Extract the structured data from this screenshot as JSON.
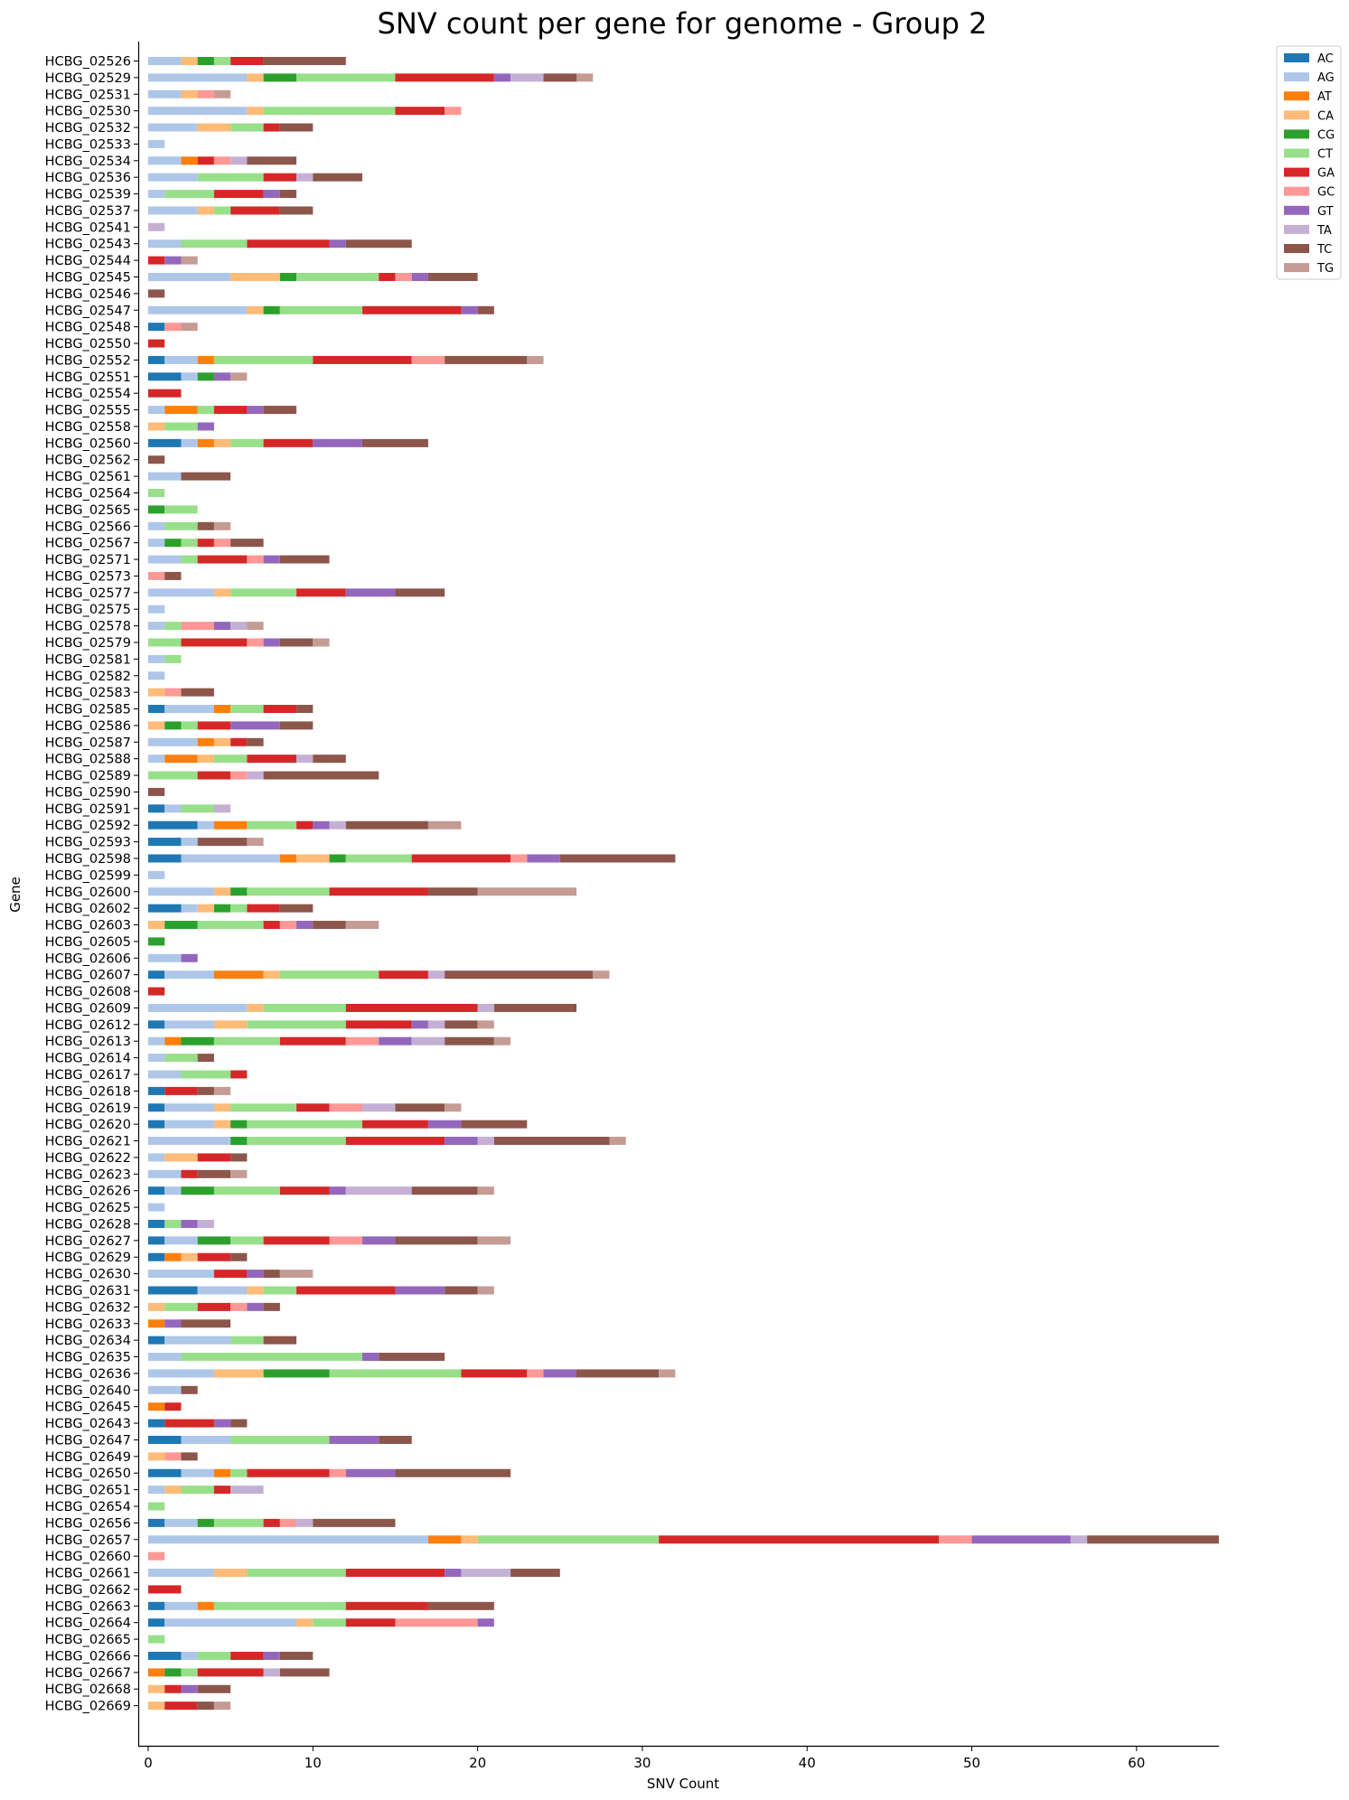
{
  "chart_data": {
    "type": "bar",
    "orientation": "horizontal",
    "stacked": true,
    "title": "SNV count per gene for genome - Group 2",
    "xlabel": "SNV Count",
    "ylabel": "Gene",
    "xlim": [
      0,
      65
    ],
    "xticks": [
      0,
      10,
      20,
      30,
      40,
      50,
      60
    ],
    "grid": false,
    "legend_position": "top-right",
    "series_names": [
      "AC",
      "AG",
      "AT",
      "CA",
      "CG",
      "CT",
      "GA",
      "GC",
      "GT",
      "TA",
      "TC",
      "TG"
    ],
    "colors": {
      "AC": "#1f77b4",
      "AG": "#aec7e8",
      "AT": "#ff7f0e",
      "CA": "#ffbb78",
      "CG": "#2ca02c",
      "CT": "#98df8a",
      "GA": "#d62728",
      "GC": "#ff9896",
      "GT": "#9467bd",
      "TA": "#c5b0d5",
      "TC": "#8c564b",
      "TG": "#c49c94"
    },
    "genes": [
      {
        "name": "HCBG_02526",
        "counts": {
          "AG": 2,
          "CA": 1,
          "CG": 1,
          "CT": 1,
          "GA": 2,
          "TC": 5
        }
      },
      {
        "name": "HCBG_02529",
        "counts": {
          "AG": 6,
          "CA": 1,
          "CG": 2,
          "CT": 6,
          "GA": 6,
          "GT": 1,
          "TA": 2,
          "TC": 2,
          "TG": 1
        }
      },
      {
        "name": "HCBG_02531",
        "counts": {
          "AG": 2,
          "CA": 1,
          "GC": 1,
          "TG": 1
        }
      },
      {
        "name": "HCBG_02530",
        "counts": {
          "AG": 6,
          "CA": 1,
          "CT": 8,
          "GA": 3,
          "GC": 1
        }
      },
      {
        "name": "HCBG_02532",
        "counts": {
          "AG": 3,
          "CA": 2,
          "CT": 2,
          "GA": 1,
          "TC": 2
        }
      },
      {
        "name": "HCBG_02533",
        "counts": {
          "AG": 1
        }
      },
      {
        "name": "HCBG_02534",
        "counts": {
          "AG": 2,
          "AT": 1,
          "GA": 1,
          "GC": 1,
          "TA": 1,
          "TC": 3
        }
      },
      {
        "name": "HCBG_02536",
        "counts": {
          "AG": 3,
          "CT": 4,
          "GA": 2,
          "TA": 1,
          "TC": 3
        }
      },
      {
        "name": "HCBG_02539",
        "counts": {
          "AG": 1,
          "CT": 3,
          "GA": 3,
          "GT": 1,
          "TC": 1
        }
      },
      {
        "name": "HCBG_02537",
        "counts": {
          "AG": 3,
          "CA": 1,
          "CT": 1,
          "GA": 3,
          "TC": 2
        }
      },
      {
        "name": "HCBG_02541",
        "counts": {
          "TA": 1
        }
      },
      {
        "name": "HCBG_02543",
        "counts": {
          "AG": 2,
          "CT": 4,
          "GA": 5,
          "GT": 1,
          "TC": 4
        }
      },
      {
        "name": "HCBG_02544",
        "counts": {
          "GA": 1,
          "GT": 1,
          "TG": 1
        }
      },
      {
        "name": "HCBG_02545",
        "counts": {
          "AG": 5,
          "CA": 3,
          "CG": 1,
          "CT": 5,
          "GA": 1,
          "GC": 1,
          "GT": 1,
          "TC": 3
        }
      },
      {
        "name": "HCBG_02546",
        "counts": {
          "TC": 1
        }
      },
      {
        "name": "HCBG_02547",
        "counts": {
          "AG": 6,
          "CA": 1,
          "CG": 1,
          "CT": 5,
          "GA": 6,
          "GT": 1,
          "TC": 1
        }
      },
      {
        "name": "HCBG_02548",
        "counts": {
          "AC": 1,
          "GC": 1,
          "TG": 1
        }
      },
      {
        "name": "HCBG_02550",
        "counts": {
          "GA": 1
        }
      },
      {
        "name": "HCBG_02552",
        "counts": {
          "AC": 1,
          "AG": 2,
          "AT": 1,
          "CT": 6,
          "GA": 6,
          "GC": 2,
          "TC": 5,
          "TG": 1
        }
      },
      {
        "name": "HCBG_02551",
        "counts": {
          "AC": 2,
          "AG": 1,
          "CG": 1,
          "GT": 1,
          "TG": 1
        }
      },
      {
        "name": "HCBG_02554",
        "counts": {
          "GA": 2
        }
      },
      {
        "name": "HCBG_02555",
        "counts": {
          "AG": 1,
          "AT": 2,
          "CT": 1,
          "GA": 2,
          "GT": 1,
          "TC": 2
        }
      },
      {
        "name": "HCBG_02558",
        "counts": {
          "CA": 1,
          "CT": 2,
          "GT": 1
        }
      },
      {
        "name": "HCBG_02560",
        "counts": {
          "AC": 2,
          "AG": 1,
          "AT": 1,
          "CA": 1,
          "CT": 2,
          "GA": 3,
          "GT": 3,
          "TC": 4
        }
      },
      {
        "name": "HCBG_02562",
        "counts": {
          "TC": 1
        }
      },
      {
        "name": "HCBG_02561",
        "counts": {
          "AG": 2,
          "TC": 3
        }
      },
      {
        "name": "HCBG_02564",
        "counts": {
          "CT": 1
        }
      },
      {
        "name": "HCBG_02565",
        "counts": {
          "CG": 1,
          "CT": 2
        }
      },
      {
        "name": "HCBG_02566",
        "counts": {
          "AG": 1,
          "CT": 2,
          "TC": 1,
          "TG": 1
        }
      },
      {
        "name": "HCBG_02567",
        "counts": {
          "AG": 1,
          "CG": 1,
          "CT": 1,
          "GA": 1,
          "GC": 1,
          "TC": 2
        }
      },
      {
        "name": "HCBG_02571",
        "counts": {
          "AG": 2,
          "CT": 1,
          "GA": 3,
          "GC": 1,
          "GT": 1,
          "TC": 3
        }
      },
      {
        "name": "HCBG_02573",
        "counts": {
          "GC": 1,
          "TC": 1
        }
      },
      {
        "name": "HCBG_02577",
        "counts": {
          "AG": 4,
          "CA": 1,
          "CT": 4,
          "GA": 3,
          "GT": 3,
          "TC": 3
        }
      },
      {
        "name": "HCBG_02575",
        "counts": {
          "AG": 1
        }
      },
      {
        "name": "HCBG_02578",
        "counts": {
          "AG": 1,
          "CT": 1,
          "GC": 2,
          "GT": 1,
          "TA": 1,
          "TG": 1
        }
      },
      {
        "name": "HCBG_02579",
        "counts": {
          "CT": 2,
          "GA": 4,
          "GC": 1,
          "GT": 1,
          "TC": 2,
          "TG": 1
        }
      },
      {
        "name": "HCBG_02581",
        "counts": {
          "AG": 1,
          "CT": 1
        }
      },
      {
        "name": "HCBG_02582",
        "counts": {
          "AG": 1
        }
      },
      {
        "name": "HCBG_02583",
        "counts": {
          "CA": 1,
          "GC": 1,
          "TC": 2
        }
      },
      {
        "name": "HCBG_02585",
        "counts": {
          "AC": 1,
          "AG": 3,
          "AT": 1,
          "CT": 2,
          "GA": 2,
          "TC": 1
        }
      },
      {
        "name": "HCBG_02586",
        "counts": {
          "CA": 1,
          "CG": 1,
          "CT": 1,
          "GA": 2,
          "GT": 3,
          "TC": 2
        }
      },
      {
        "name": "HCBG_02587",
        "counts": {
          "AG": 3,
          "AT": 1,
          "CA": 1,
          "GA": 1,
          "TC": 1
        }
      },
      {
        "name": "HCBG_02588",
        "counts": {
          "AG": 1,
          "AT": 2,
          "CA": 1,
          "CT": 2,
          "GA": 3,
          "TA": 1,
          "TC": 2
        }
      },
      {
        "name": "HCBG_02589",
        "counts": {
          "CT": 3,
          "GA": 2,
          "GC": 1,
          "TA": 1,
          "TC": 7
        }
      },
      {
        "name": "HCBG_02590",
        "counts": {
          "TC": 1
        }
      },
      {
        "name": "HCBG_02591",
        "counts": {
          "AC": 1,
          "AG": 1,
          "CT": 2,
          "TA": 1
        }
      },
      {
        "name": "HCBG_02592",
        "counts": {
          "AC": 3,
          "AG": 1,
          "AT": 2,
          "CT": 3,
          "GA": 1,
          "GT": 1,
          "TA": 1,
          "TC": 5,
          "TG": 2
        }
      },
      {
        "name": "HCBG_02593",
        "counts": {
          "AC": 2,
          "AG": 1,
          "TC": 3,
          "TG": 1
        }
      },
      {
        "name": "HCBG_02598",
        "counts": {
          "AC": 2,
          "AG": 6,
          "AT": 1,
          "CA": 2,
          "CG": 1,
          "CT": 4,
          "GA": 6,
          "GC": 1,
          "GT": 2,
          "TC": 7
        }
      },
      {
        "name": "HCBG_02599",
        "counts": {
          "AG": 1
        }
      },
      {
        "name": "HCBG_02600",
        "counts": {
          "AG": 4,
          "CA": 1,
          "CG": 1,
          "CT": 5,
          "GA": 6,
          "TC": 3,
          "TG": 6
        }
      },
      {
        "name": "HCBG_02602",
        "counts": {
          "AC": 2,
          "AG": 1,
          "CA": 1,
          "CG": 1,
          "CT": 1,
          "GA": 2,
          "TC": 2
        }
      },
      {
        "name": "HCBG_02603",
        "counts": {
          "CA": 1,
          "CG": 2,
          "CT": 4,
          "GA": 1,
          "GC": 1,
          "GT": 1,
          "TC": 2,
          "TG": 2
        }
      },
      {
        "name": "HCBG_02605",
        "counts": {
          "CG": 1
        }
      },
      {
        "name": "HCBG_02606",
        "counts": {
          "AG": 2,
          "GT": 1
        }
      },
      {
        "name": "HCBG_02607",
        "counts": {
          "AC": 1,
          "AG": 3,
          "AT": 3,
          "CA": 1,
          "CT": 6,
          "GA": 3,
          "TA": 1,
          "TC": 9,
          "TG": 1
        }
      },
      {
        "name": "HCBG_02608",
        "counts": {
          "GA": 1
        }
      },
      {
        "name": "HCBG_02609",
        "counts": {
          "AG": 6,
          "CA": 1,
          "CT": 5,
          "GA": 8,
          "TA": 1,
          "TC": 5
        }
      },
      {
        "name": "HCBG_02612",
        "counts": {
          "AC": 1,
          "AG": 3,
          "CA": 2,
          "CT": 6,
          "GA": 4,
          "GT": 1,
          "TA": 1,
          "TC": 2,
          "TG": 1
        }
      },
      {
        "name": "HCBG_02613",
        "counts": {
          "AG": 1,
          "AT": 1,
          "CG": 2,
          "CT": 4,
          "GA": 4,
          "GC": 2,
          "GT": 2,
          "TA": 2,
          "TC": 3,
          "TG": 1
        }
      },
      {
        "name": "HCBG_02614",
        "counts": {
          "AG": 1,
          "CT": 2,
          "TC": 1
        }
      },
      {
        "name": "HCBG_02617",
        "counts": {
          "AG": 2,
          "CT": 3,
          "GA": 1
        }
      },
      {
        "name": "HCBG_02618",
        "counts": {
          "AC": 1,
          "GA": 2,
          "TC": 1,
          "TG": 1
        }
      },
      {
        "name": "HCBG_02619",
        "counts": {
          "AC": 1,
          "AG": 3,
          "CA": 1,
          "CT": 4,
          "GA": 2,
          "GC": 2,
          "TA": 2,
          "TC": 3,
          "TG": 1
        }
      },
      {
        "name": "HCBG_02620",
        "counts": {
          "AC": 1,
          "AG": 3,
          "CA": 1,
          "CG": 1,
          "CT": 7,
          "GA": 4,
          "GT": 2,
          "TC": 4
        }
      },
      {
        "name": "HCBG_02621",
        "counts": {
          "AG": 5,
          "CG": 1,
          "CT": 6,
          "GA": 6,
          "GT": 2,
          "TA": 1,
          "TC": 7,
          "TG": 1
        }
      },
      {
        "name": "HCBG_02622",
        "counts": {
          "AG": 1,
          "CA": 2,
          "GA": 2,
          "TC": 1
        }
      },
      {
        "name": "HCBG_02623",
        "counts": {
          "AG": 2,
          "GA": 1,
          "TC": 2,
          "TG": 1
        }
      },
      {
        "name": "HCBG_02626",
        "counts": {
          "AC": 1,
          "AG": 1,
          "CG": 2,
          "CT": 4,
          "GA": 3,
          "GT": 1,
          "TA": 4,
          "TC": 4,
          "TG": 1
        }
      },
      {
        "name": "HCBG_02625",
        "counts": {
          "AG": 1
        }
      },
      {
        "name": "HCBG_02628",
        "counts": {
          "AC": 1,
          "CT": 1,
          "GT": 1,
          "TA": 1
        }
      },
      {
        "name": "HCBG_02627",
        "counts": {
          "AC": 1,
          "AG": 2,
          "CG": 2,
          "CT": 2,
          "GA": 4,
          "GC": 2,
          "GT": 2,
          "TC": 5,
          "TG": 2
        }
      },
      {
        "name": "HCBG_02629",
        "counts": {
          "AC": 1,
          "AT": 1,
          "CA": 1,
          "GA": 2,
          "TC": 1
        }
      },
      {
        "name": "HCBG_02630",
        "counts": {
          "AG": 4,
          "GA": 2,
          "GT": 1,
          "TC": 1,
          "TG": 2
        }
      },
      {
        "name": "HCBG_02631",
        "counts": {
          "AC": 3,
          "AG": 3,
          "CA": 1,
          "CT": 2,
          "GA": 6,
          "GT": 3,
          "TC": 2,
          "TG": 1
        }
      },
      {
        "name": "HCBG_02632",
        "counts": {
          "CA": 1,
          "CT": 2,
          "GA": 2,
          "GC": 1,
          "GT": 1,
          "TC": 1
        }
      },
      {
        "name": "HCBG_02633",
        "counts": {
          "AT": 1,
          "GT": 1,
          "TC": 3
        }
      },
      {
        "name": "HCBG_02634",
        "counts": {
          "AC": 1,
          "AG": 4,
          "CT": 2,
          "TC": 2
        }
      },
      {
        "name": "HCBG_02635",
        "counts": {
          "AG": 2,
          "CT": 11,
          "GT": 1,
          "TC": 4
        }
      },
      {
        "name": "HCBG_02636",
        "counts": {
          "AG": 4,
          "CA": 3,
          "CG": 4,
          "CT": 8,
          "GA": 4,
          "GC": 1,
          "GT": 2,
          "TC": 5,
          "TG": 1
        }
      },
      {
        "name": "HCBG_02640",
        "counts": {
          "AG": 2,
          "TC": 1
        }
      },
      {
        "name": "HCBG_02645",
        "counts": {
          "AT": 1,
          "GA": 1
        }
      },
      {
        "name": "HCBG_02643",
        "counts": {
          "AC": 1,
          "GA": 3,
          "GT": 1,
          "TC": 1
        }
      },
      {
        "name": "HCBG_02647",
        "counts": {
          "AC": 2,
          "AG": 3,
          "CT": 6,
          "GT": 3,
          "TC": 2
        }
      },
      {
        "name": "HCBG_02649",
        "counts": {
          "CA": 1,
          "GC": 1,
          "TC": 1
        }
      },
      {
        "name": "HCBG_02650",
        "counts": {
          "AC": 2,
          "AG": 2,
          "AT": 1,
          "CT": 1,
          "GA": 5,
          "GC": 1,
          "GT": 3,
          "TC": 7
        }
      },
      {
        "name": "HCBG_02651",
        "counts": {
          "AG": 1,
          "CA": 1,
          "CT": 2,
          "GA": 1,
          "TA": 2
        }
      },
      {
        "name": "HCBG_02654",
        "counts": {
          "CT": 1
        }
      },
      {
        "name": "HCBG_02656",
        "counts": {
          "AC": 1,
          "AG": 2,
          "CG": 1,
          "CT": 3,
          "GA": 1,
          "GC": 1,
          "TA": 1,
          "TC": 5
        }
      },
      {
        "name": "HCBG_02657",
        "counts": {
          "AG": 17,
          "AT": 2,
          "CA": 1,
          "CT": 11,
          "GA": 17,
          "GC": 2,
          "GT": 6,
          "TA": 1,
          "TC": 8
        }
      },
      {
        "name": "HCBG_02660",
        "counts": {
          "GC": 1
        }
      },
      {
        "name": "HCBG_02661",
        "counts": {
          "AG": 4,
          "CA": 2,
          "CT": 6,
          "GA": 6,
          "GT": 1,
          "TA": 3,
          "TC": 3
        }
      },
      {
        "name": "HCBG_02662",
        "counts": {
          "GA": 2
        }
      },
      {
        "name": "HCBG_02663",
        "counts": {
          "AC": 1,
          "AG": 2,
          "AT": 1,
          "CT": 8,
          "GA": 5,
          "TC": 4
        }
      },
      {
        "name": "HCBG_02664",
        "counts": {
          "AC": 1,
          "AG": 8,
          "CA": 1,
          "CT": 2,
          "GA": 3,
          "GC": 5,
          "GT": 1
        }
      },
      {
        "name": "HCBG_02665",
        "counts": {
          "CT": 1
        }
      },
      {
        "name": "HCBG_02666",
        "counts": {
          "AC": 2,
          "AG": 1,
          "CT": 2,
          "GA": 2,
          "GT": 1,
          "TC": 2
        }
      },
      {
        "name": "HCBG_02667",
        "counts": {
          "AT": 1,
          "CG": 1,
          "CT": 1,
          "GA": 4,
          "TA": 1,
          "TC": 3
        }
      },
      {
        "name": "HCBG_02668",
        "counts": {
          "CA": 1,
          "GA": 1,
          "GT": 1,
          "TC": 2
        }
      },
      {
        "name": "HCBG_02669",
        "counts": {
          "CA": 1,
          "GA": 2,
          "TC": 1,
          "TG": 1
        }
      }
    ]
  }
}
